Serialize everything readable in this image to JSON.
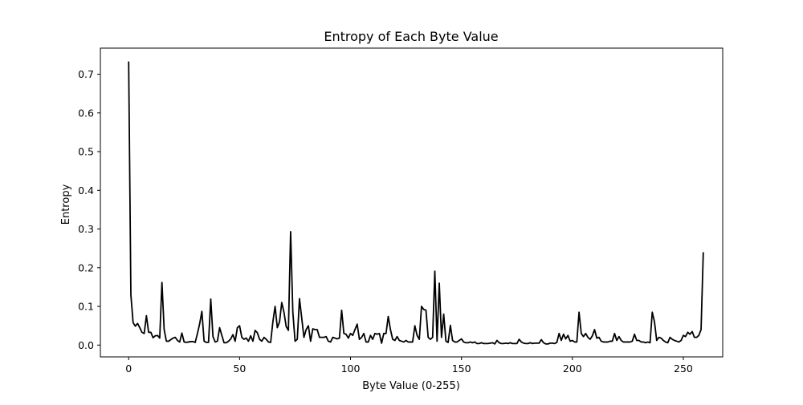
{
  "chart_data": {
    "type": "line",
    "title": "Entropy of Each Byte Value",
    "xlabel": "Byte Value (0-255)",
    "ylabel": "Entropy",
    "xlim": [
      -12.75,
      267.75
    ],
    "ylim": [
      -0.0305,
      0.7675
    ],
    "xticks": [
      0,
      50,
      100,
      150,
      200,
      250
    ],
    "yticks": [
      0.0,
      0.1,
      0.2,
      0.3,
      0.4,
      0.5,
      0.6,
      0.7
    ],
    "grid": false,
    "line_color": "#000000",
    "series": [
      {
        "values": [
          0.733,
          0.13,
          0.058,
          0.049,
          0.056,
          0.045,
          0.033,
          0.03,
          0.076,
          0.033,
          0.033,
          0.019,
          0.024,
          0.025,
          0.018,
          0.162,
          0.04,
          0.01,
          0.01,
          0.014,
          0.018,
          0.02,
          0.012,
          0.008,
          0.031,
          0.008,
          0.007,
          0.008,
          0.009,
          0.009,
          0.007,
          0.03,
          0.055,
          0.087,
          0.01,
          0.007,
          0.007,
          0.119,
          0.022,
          0.008,
          0.01,
          0.045,
          0.025,
          0.006,
          0.006,
          0.01,
          0.016,
          0.027,
          0.01,
          0.045,
          0.05,
          0.02,
          0.015,
          0.018,
          0.01,
          0.024,
          0.01,
          0.038,
          0.032,
          0.015,
          0.01,
          0.02,
          0.015,
          0.008,
          0.007,
          0.06,
          0.1,
          0.045,
          0.06,
          0.11,
          0.085,
          0.048,
          0.038,
          0.293,
          0.085,
          0.01,
          0.015,
          0.12,
          0.07,
          0.02,
          0.04,
          0.05,
          0.01,
          0.042,
          0.04,
          0.04,
          0.02,
          0.02,
          0.02,
          0.022,
          0.01,
          0.008,
          0.02,
          0.018,
          0.016,
          0.018,
          0.09,
          0.03,
          0.028,
          0.018,
          0.03,
          0.025,
          0.04,
          0.054,
          0.015,
          0.02,
          0.03,
          0.008,
          0.008,
          0.025,
          0.015,
          0.03,
          0.028,
          0.03,
          0.005,
          0.03,
          0.03,
          0.074,
          0.04,
          0.015,
          0.012,
          0.022,
          0.012,
          0.01,
          0.008,
          0.012,
          0.008,
          0.008,
          0.008,
          0.05,
          0.025,
          0.015,
          0.1,
          0.092,
          0.09,
          0.02,
          0.015,
          0.02,
          0.191,
          0.01,
          0.16,
          0.02,
          0.08,
          0.01,
          0.007,
          0.051,
          0.012,
          0.008,
          0.008,
          0.012,
          0.016,
          0.008,
          0.006,
          0.006,
          0.008,
          0.006,
          0.008,
          0.004,
          0.004,
          0.006,
          0.004,
          0.004,
          0.004,
          0.005,
          0.006,
          0.003,
          0.012,
          0.006,
          0.004,
          0.004,
          0.005,
          0.004,
          0.006,
          0.004,
          0.004,
          0.004,
          0.015,
          0.008,
          0.005,
          0.004,
          0.004,
          0.006,
          0.004,
          0.005,
          0.005,
          0.005,
          0.014,
          0.006,
          0.003,
          0.003,
          0.005,
          0.005,
          0.004,
          0.007,
          0.03,
          0.012,
          0.028,
          0.016,
          0.025,
          0.01,
          0.012,
          0.008,
          0.008,
          0.085,
          0.03,
          0.022,
          0.03,
          0.02,
          0.015,
          0.024,
          0.04,
          0.018,
          0.02,
          0.01,
          0.008,
          0.008,
          0.008,
          0.01,
          0.01,
          0.03,
          0.012,
          0.022,
          0.012,
          0.008,
          0.008,
          0.008,
          0.008,
          0.01,
          0.028,
          0.012,
          0.012,
          0.008,
          0.008,
          0.006,
          0.008,
          0.006,
          0.085,
          0.06,
          0.012,
          0.02,
          0.018,
          0.012,
          0.008,
          0.006,
          0.02,
          0.015,
          0.012,
          0.01,
          0.008,
          0.012,
          0.025,
          0.022,
          0.033,
          0.028,
          0.035,
          0.02,
          0.02,
          0.025,
          0.04,
          0.24
        ]
      }
    ]
  }
}
